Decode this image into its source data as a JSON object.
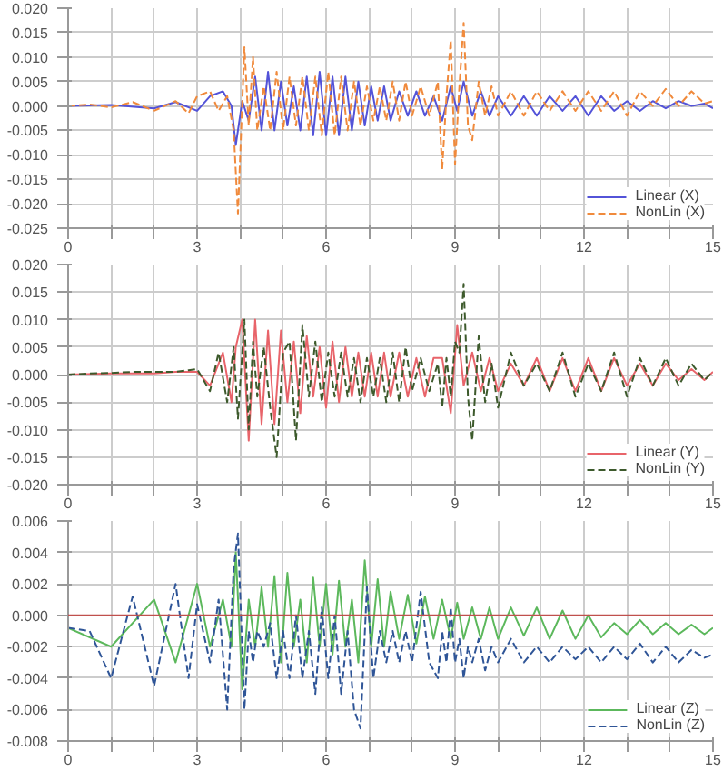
{
  "chart_data": [
    {
      "type": "line",
      "grid": true,
      "legend": "bottom right",
      "xlim": [
        0,
        15
      ],
      "ylim": [
        -0.025,
        0.02
      ],
      "xticks": [
        0,
        {
          "value": 1,
          "label": null
        },
        {
          "value": 2,
          "label": null
        },
        3,
        {
          "value": 4,
          "label": null
        },
        {
          "value": 5,
          "label": null
        },
        6,
        {
          "value": 7,
          "label": null
        },
        {
          "value": 8,
          "label": null
        },
        9,
        {
          "value": 10,
          "label": null
        },
        {
          "value": 11,
          "label": null
        },
        12,
        {
          "value": 13,
          "label": null
        },
        {
          "value": 14,
          "label": null
        },
        15
      ],
      "yticks": [
        {
          "value": -0.025,
          "label": "-0.025"
        },
        {
          "value": -0.02,
          "label": "-0.020"
        },
        {
          "value": -0.015,
          "label": "-0.015"
        },
        {
          "value": -0.01,
          "label": "-0.010"
        },
        {
          "value": -0.005,
          "label": "-0.005"
        },
        {
          "value": 0,
          "label": "0.000"
        },
        {
          "value": 0.005,
          "label": "0.005"
        },
        {
          "value": 0.01,
          "label": "0.010"
        },
        {
          "value": 0.015,
          "label": "0.015"
        },
        {
          "value": 0.02,
          "label": "0.020"
        }
      ],
      "series": [
        {
          "name": "Linear (X)",
          "color": "#5353d8",
          "line_style": "solid",
          "x": [
            0,
            1,
            2,
            2.5,
            3,
            3.3,
            3.6,
            3.8,
            3.9,
            4.05,
            4.2,
            4.35,
            4.5,
            4.65,
            4.8,
            4.95,
            5.1,
            5.25,
            5.4,
            5.55,
            5.7,
            5.85,
            6.0,
            6.15,
            6.3,
            6.45,
            6.6,
            6.75,
            6.9,
            7.05,
            7.2,
            7.35,
            7.5,
            7.7,
            7.9,
            8.1,
            8.3,
            8.5,
            8.7,
            8.9,
            9.05,
            9.2,
            9.4,
            9.6,
            9.8,
            10.0,
            10.3,
            10.6,
            10.9,
            11.2,
            11.5,
            11.8,
            12.1,
            12.4,
            12.7,
            13.0,
            13.3,
            13.6,
            13.9,
            14.2,
            14.5,
            14.8,
            15
          ],
          "values": [
            0,
            0.0002,
            -0.0005,
            0.0008,
            -0.001,
            0.002,
            0.003,
            0,
            -0.008,
            0.001,
            -0.003,
            0.006,
            -0.005,
            0.007,
            -0.005,
            0.005,
            -0.004,
            0.004,
            -0.005,
            0.006,
            -0.006,
            0.007,
            -0.006,
            0.006,
            -0.006,
            0.006,
            -0.005,
            0.005,
            -0.004,
            0.004,
            -0.003,
            0.004,
            -0.003,
            0.003,
            -0.002,
            0.003,
            -0.002,
            0.002,
            -0.003,
            0.004,
            -0.001,
            0.005,
            -0.002,
            0.003,
            -0.002,
            0.002,
            -0.002,
            0.002,
            -0.002,
            0.002,
            -0.001,
            0.002,
            -0.002,
            0.002,
            -0.001,
            0.001,
            -0.001,
            0.001,
            -0.0005,
            0.001,
            0,
            0.0005,
            -0.0005
          ]
        },
        {
          "name": "NonLin (X)",
          "color": "#f08a3c",
          "line_style": "dashed",
          "x": [
            0,
            0.5,
            1,
            1.5,
            2,
            2.5,
            2.8,
            3.0,
            3.3,
            3.5,
            3.7,
            3.85,
            3.95,
            4.1,
            4.2,
            4.3,
            4.4,
            4.55,
            4.7,
            4.85,
            5.0,
            5.15,
            5.3,
            5.45,
            5.6,
            5.75,
            5.9,
            6.05,
            6.2,
            6.35,
            6.5,
            6.65,
            6.8,
            6.95,
            7.1,
            7.25,
            7.4,
            7.55,
            7.7,
            7.85,
            8.0,
            8.2,
            8.4,
            8.6,
            8.7,
            8.8,
            8.9,
            9.0,
            9.1,
            9.2,
            9.3,
            9.4,
            9.55,
            9.7,
            9.85,
            10.0,
            10.3,
            10.6,
            10.9,
            11.2,
            11.5,
            11.8,
            12.1,
            12.4,
            12.7,
            13.0,
            13.3,
            13.6,
            13.9,
            14.2,
            14.5,
            14.8,
            15
          ],
          "values": [
            0,
            0.0003,
            -0.0003,
            0.0008,
            -0.001,
            0.001,
            -0.0015,
            0.002,
            0.003,
            -0.001,
            0.002,
            -0.005,
            -0.022,
            0.012,
            -0.004,
            0.01,
            -0.005,
            0.004,
            -0.005,
            0.007,
            -0.005,
            0.006,
            -0.004,
            0.006,
            -0.005,
            0.006,
            -0.006,
            0.007,
            -0.006,
            0.006,
            -0.005,
            0.005,
            -0.004,
            0.004,
            -0.003,
            0.004,
            -0.003,
            0.005,
            -0.003,
            0.005,
            -0.002,
            0.004,
            -0.002,
            0.005,
            -0.013,
            0.002,
            0.0135,
            -0.012,
            0.004,
            0.017,
            -0.004,
            -0.007,
            0.005,
            -0.002,
            0.004,
            -0.002,
            0.003,
            -0.002,
            0.003,
            -0.001,
            0.003,
            -0.001,
            0.003,
            -0.001,
            0.003,
            -0.002,
            0.003,
            0,
            0.0035,
            0,
            0.003,
            0.0005,
            0.001
          ]
        }
      ]
    },
    {
      "type": "line",
      "grid": true,
      "legend": "bottom right",
      "xlim": [
        0,
        15
      ],
      "ylim": [
        -0.02,
        0.02
      ],
      "xticks": [
        0,
        {
          "value": 1,
          "label": null
        },
        {
          "value": 2,
          "label": null
        },
        3,
        {
          "value": 4,
          "label": null
        },
        {
          "value": 5,
          "label": null
        },
        6,
        {
          "value": 7,
          "label": null
        },
        {
          "value": 8,
          "label": null
        },
        9,
        {
          "value": 10,
          "label": null
        },
        {
          "value": 11,
          "label": null
        },
        12,
        {
          "value": 13,
          "label": null
        },
        {
          "value": 14,
          "label": null
        },
        15
      ],
      "yticks": [
        {
          "value": -0.02,
          "label": "-0.020"
        },
        {
          "value": -0.015,
          "label": "-0.015"
        },
        {
          "value": -0.01,
          "label": "-0.010"
        },
        {
          "value": -0.005,
          "label": "-0.005"
        },
        {
          "value": 0,
          "label": "0.000"
        },
        {
          "value": 0.005,
          "label": "0.005"
        },
        {
          "value": 0.01,
          "label": "0.010"
        },
        {
          "value": 0.015,
          "label": "0.015"
        },
        {
          "value": 0.02,
          "label": "0.020"
        }
      ],
      "series": [
        {
          "name": "Linear (Y)",
          "color": "#e8646a",
          "line_style": "solid",
          "x": [
            0,
            1,
            2,
            2.5,
            3,
            3.3,
            3.6,
            3.8,
            3.9,
            4.05,
            4.2,
            4.35,
            4.5,
            4.65,
            4.8,
            4.95,
            5.1,
            5.25,
            5.4,
            5.55,
            5.7,
            5.85,
            6.0,
            6.15,
            6.3,
            6.45,
            6.6,
            6.75,
            6.9,
            7.05,
            7.2,
            7.35,
            7.5,
            7.7,
            7.9,
            8.1,
            8.3,
            8.5,
            8.7,
            8.9,
            9.05,
            9.2,
            9.4,
            9.6,
            9.8,
            10.0,
            10.3,
            10.6,
            10.9,
            11.2,
            11.5,
            11.8,
            12.1,
            12.4,
            12.7,
            13.0,
            13.3,
            13.6,
            13.9,
            14.2,
            14.5,
            14.8,
            15
          ],
          "values": [
            0,
            0.0002,
            0.0002,
            0.0005,
            0.0005,
            -0.002,
            0.004,
            -0.005,
            0.005,
            0.01,
            -0.012,
            0.01,
            -0.009,
            0.008,
            -0.009,
            0.008,
            -0.005,
            0.006,
            -0.007,
            0.007,
            -0.004,
            0.005,
            -0.006,
            0.006,
            -0.005,
            0.005,
            -0.004,
            0.004,
            -0.004,
            0.004,
            -0.004,
            0.004,
            -0.004,
            0.004,
            -0.004,
            0.003,
            -0.004,
            0.003,
            0.003,
            -0.007,
            0.009,
            -0.002,
            0.004,
            -0.003,
            0.003,
            -0.003,
            0.002,
            -0.002,
            0.003,
            -0.003,
            0.003,
            -0.003,
            0.003,
            -0.003,
            0.003,
            -0.002,
            0.002,
            -0.002,
            0.002,
            -0.001,
            0.001,
            -0.001,
            0.0005
          ]
        },
        {
          "name": "NonLin (Y)",
          "color": "#3d5a2c",
          "line_style": "dashed",
          "x": [
            0,
            0.5,
            1,
            1.5,
            2,
            2.5,
            2.8,
            3.0,
            3.3,
            3.5,
            3.7,
            3.85,
            3.95,
            4.1,
            4.2,
            4.3,
            4.4,
            4.55,
            4.7,
            4.85,
            5.0,
            5.15,
            5.3,
            5.45,
            5.6,
            5.75,
            5.9,
            6.05,
            6.2,
            6.35,
            6.5,
            6.65,
            6.8,
            6.95,
            7.1,
            7.25,
            7.4,
            7.55,
            7.7,
            7.85,
            8.0,
            8.2,
            8.4,
            8.6,
            8.7,
            8.8,
            8.9,
            9.0,
            9.1,
            9.2,
            9.3,
            9.4,
            9.55,
            9.7,
            9.85,
            10.0,
            10.3,
            10.6,
            10.9,
            11.2,
            11.5,
            11.8,
            12.1,
            12.4,
            12.7,
            13.0,
            13.3,
            13.6,
            13.9,
            14.2,
            14.5,
            14.8,
            15
          ],
          "values": [
            0,
            0.0002,
            0.0003,
            0.0005,
            0.0005,
            0.0005,
            0.0008,
            0.001,
            -0.003,
            0.004,
            -0.005,
            0.005,
            -0.008,
            0.01,
            -0.01,
            0.006,
            -0.004,
            0.005,
            -0.006,
            -0.015,
            0.004,
            0.006,
            -0.012,
            0.009,
            -0.004,
            0.006,
            -0.005,
            0.004,
            -0.004,
            0.004,
            -0.004,
            0.003,
            -0.005,
            0.003,
            -0.004,
            0.003,
            -0.005,
            0.004,
            -0.005,
            0.005,
            -0.003,
            0.003,
            -0.003,
            0.002,
            -0.006,
            0.003,
            -0.004,
            0.006,
            0.004,
            0.0165,
            -0.004,
            -0.012,
            0.007,
            -0.005,
            0.002,
            -0.006,
            0.004,
            -0.002,
            0.002,
            -0.003,
            0.004,
            -0.004,
            0.002,
            -0.003,
            0.004,
            -0.004,
            0.003,
            -0.002,
            0.003,
            -0.002,
            0.002,
            -0.001,
            0.0005
          ]
        }
      ]
    },
    {
      "type": "line",
      "grid": true,
      "legend": "bottom right",
      "xlim": [
        0,
        15
      ],
      "ylim": [
        -0.008,
        0.006
      ],
      "xticks": [
        0,
        {
          "value": 1,
          "label": null
        },
        {
          "value": 2,
          "label": null
        },
        3,
        {
          "value": 4,
          "label": null
        },
        {
          "value": 5,
          "label": null
        },
        6,
        {
          "value": 7,
          "label": null
        },
        {
          "value": 8,
          "label": null
        },
        9,
        {
          "value": 10,
          "label": null
        },
        {
          "value": 11,
          "label": null
        },
        12,
        {
          "value": 13,
          "label": null
        },
        {
          "value": 14,
          "label": null
        },
        15
      ],
      "yticks": [
        {
          "value": -0.008,
          "label": "-0.008"
        },
        {
          "value": -0.006,
          "label": "-0.006"
        },
        {
          "value": -0.004,
          "label": "-0.004"
        },
        {
          "value": -0.002,
          "label": "-0.002"
        },
        {
          "value": 0,
          "label": "0.000"
        },
        {
          "value": 0.002,
          "label": "0.002"
        },
        {
          "value": 0.004,
          "label": "0.004"
        },
        {
          "value": 0.006,
          "label": "0.006"
        }
      ],
      "ref_lines": [
        {
          "axis": "y",
          "value": 0,
          "color": "#c0504d"
        }
      ],
      "series": [
        {
          "name": "Linear (Z)",
          "color": "#5cb85c",
          "line_style": "solid",
          "x": [
            0,
            1,
            2,
            2.5,
            3,
            3.3,
            3.6,
            3.8,
            3.9,
            4.05,
            4.2,
            4.35,
            4.5,
            4.65,
            4.8,
            4.95,
            5.1,
            5.25,
            5.4,
            5.55,
            5.7,
            5.85,
            6.0,
            6.15,
            6.3,
            6.45,
            6.6,
            6.75,
            6.9,
            7.05,
            7.2,
            7.35,
            7.5,
            7.7,
            7.9,
            8.1,
            8.3,
            8.5,
            8.7,
            8.9,
            9.05,
            9.2,
            9.4,
            9.6,
            9.8,
            10.0,
            10.3,
            10.6,
            10.9,
            11.2,
            11.5,
            11.8,
            12.1,
            12.4,
            12.7,
            13.0,
            13.3,
            13.6,
            13.9,
            14.2,
            14.5,
            14.8,
            15
          ],
          "values": [
            -0.0008,
            -0.002,
            0.001,
            -0.003,
            0.002,
            -0.002,
            0.001,
            -0.002,
            0.004,
            -0.0047,
            0.001,
            -0.002,
            0.0018,
            -0.002,
            0.0025,
            -0.003,
            0.0027,
            -0.002,
            0.001,
            -0.003,
            0.0024,
            -0.002,
            0.002,
            -0.0025,
            0.0022,
            -0.002,
            0.001,
            -0.003,
            0.0035,
            -0.002,
            0.0023,
            -0.002,
            0.0015,
            -0.0015,
            0.0013,
            -0.0018,
            0.0012,
            -0.0015,
            0.001,
            -0.0015,
            0.0008,
            -0.0015,
            0.0005,
            -0.0015,
            0.0005,
            -0.0015,
            0.0005,
            -0.0013,
            0.0005,
            -0.0015,
            0.0003,
            -0.0015,
            0,
            -0.0014,
            -0.0005,
            -0.0012,
            -0.0003,
            -0.0012,
            -0.0005,
            -0.0012,
            -0.0006,
            -0.0012,
            -0.0008
          ]
        },
        {
          "name": "NonLin (Z)",
          "color": "#2f5597",
          "line_style": "dashed",
          "x": [
            0,
            0.5,
            1,
            1.5,
            2,
            2.5,
            2.8,
            3.0,
            3.3,
            3.5,
            3.7,
            3.85,
            3.95,
            4.1,
            4.2,
            4.3,
            4.4,
            4.55,
            4.7,
            4.85,
            5.0,
            5.15,
            5.3,
            5.45,
            5.6,
            5.75,
            5.9,
            6.05,
            6.2,
            6.35,
            6.5,
            6.65,
            6.8,
            6.95,
            7.1,
            7.25,
            7.4,
            7.55,
            7.7,
            7.85,
            8.0,
            8.2,
            8.4,
            8.6,
            8.7,
            8.8,
            8.9,
            9.0,
            9.1,
            9.2,
            9.3,
            9.4,
            9.55,
            9.7,
            9.85,
            10.0,
            10.3,
            10.6,
            10.9,
            11.2,
            11.5,
            11.8,
            12.1,
            12.4,
            12.7,
            13.0,
            13.3,
            13.6,
            13.9,
            14.2,
            14.5,
            14.8,
            15
          ],
          "values": [
            -0.0008,
            -0.001,
            -0.004,
            0.0012,
            -0.0045,
            0.002,
            -0.004,
            0.0007,
            -0.003,
            0.001,
            -0.006,
            0.003,
            0.0052,
            -0.006,
            -0.001,
            -0.003,
            -0.001,
            -0.002,
            -0.0005,
            -0.004,
            -0.001,
            -0.004,
            0,
            -0.004,
            -0.001,
            -0.005,
            0.0005,
            -0.004,
            0,
            -0.005,
            -0.001,
            -0.006,
            -0.0072,
            0.0018,
            -0.004,
            -0.001,
            -0.003,
            -0.001,
            -0.003,
            -0.001,
            -0.003,
            0.0015,
            -0.003,
            -0.004,
            -0.001,
            -0.003,
            0.0005,
            -0.003,
            -0.0015,
            -0.004,
            -0.002,
            -0.003,
            -0.0015,
            -0.0035,
            -0.002,
            -0.003,
            -0.0015,
            -0.003,
            -0.002,
            -0.003,
            -0.002,
            -0.0028,
            -0.002,
            -0.003,
            -0.002,
            -0.0028,
            -0.0018,
            -0.003,
            -0.002,
            -0.003,
            -0.0022,
            -0.0027,
            -0.0025
          ]
        }
      ]
    }
  ]
}
